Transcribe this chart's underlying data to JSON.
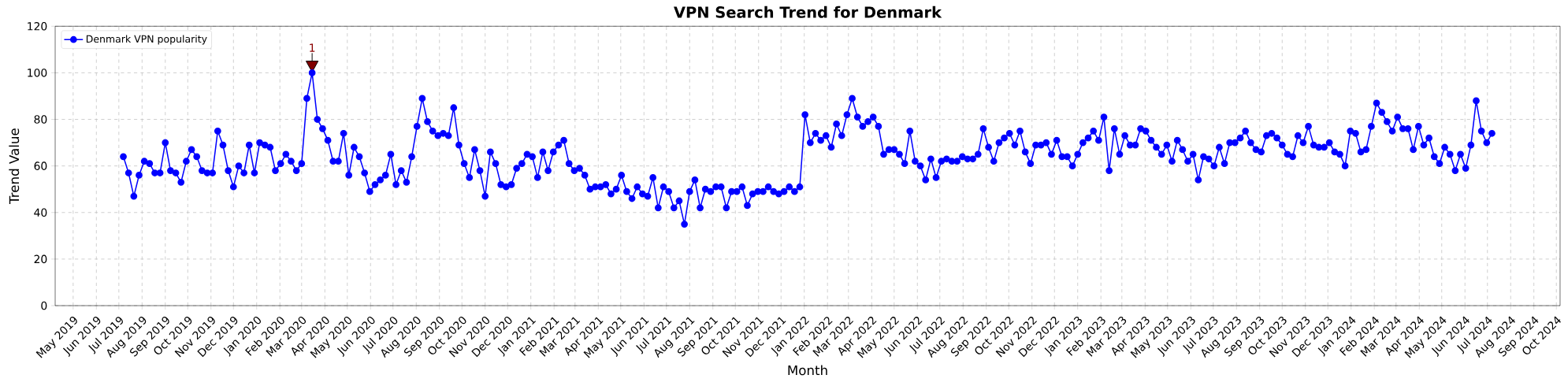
{
  "chart_data": {
    "type": "line",
    "title": "VPN Search Trend for Denmark",
    "xlabel": "Month",
    "ylabel": "Trend Value",
    "x": [
      "2019-07-07",
      "2019-07-14",
      "2019-07-21",
      "2019-07-28",
      "2019-08-04",
      "2019-08-11",
      "2019-08-18",
      "2019-08-25",
      "2019-09-01",
      "2019-09-08",
      "2019-09-15",
      "2019-09-22",
      "2019-09-29",
      "2019-10-06",
      "2019-10-13",
      "2019-10-20",
      "2019-10-27",
      "2019-11-03",
      "2019-11-10",
      "2019-11-17",
      "2019-11-24",
      "2019-12-01",
      "2019-12-08",
      "2019-12-15",
      "2019-12-22",
      "2019-12-29",
      "2020-01-05",
      "2020-01-12",
      "2020-01-19",
      "2020-01-26",
      "2020-02-02",
      "2020-02-09",
      "2020-02-16",
      "2020-02-23",
      "2020-03-01",
      "2020-03-08",
      "2020-03-15",
      "2020-03-22",
      "2020-03-29",
      "2020-04-05",
      "2020-04-12",
      "2020-04-19",
      "2020-04-26",
      "2020-05-03",
      "2020-05-10",
      "2020-05-17",
      "2020-05-24",
      "2020-05-31",
      "2020-06-07",
      "2020-06-14",
      "2020-06-21",
      "2020-06-28",
      "2020-07-05",
      "2020-07-12",
      "2020-07-19",
      "2020-07-26",
      "2020-08-02",
      "2020-08-09",
      "2020-08-16",
      "2020-08-23",
      "2020-08-30",
      "2020-09-06",
      "2020-09-13",
      "2020-09-20",
      "2020-09-27",
      "2020-10-04",
      "2020-10-11",
      "2020-10-18",
      "2020-10-25",
      "2020-11-01",
      "2020-11-08",
      "2020-11-15",
      "2020-11-22",
      "2020-11-29",
      "2020-12-06",
      "2020-12-13",
      "2020-12-20",
      "2020-12-27",
      "2021-01-03",
      "2021-01-10",
      "2021-01-17",
      "2021-01-24",
      "2021-01-31",
      "2021-02-07",
      "2021-02-14",
      "2021-02-21",
      "2021-02-28",
      "2021-03-07",
      "2021-03-14",
      "2021-03-21",
      "2021-03-28",
      "2021-04-04",
      "2021-04-11",
      "2021-04-18",
      "2021-04-25",
      "2021-05-02",
      "2021-05-09",
      "2021-05-16",
      "2021-05-23",
      "2021-05-30",
      "2021-06-06",
      "2021-06-13",
      "2021-06-20",
      "2021-06-27",
      "2021-07-04",
      "2021-07-11",
      "2021-07-18",
      "2021-07-25",
      "2021-08-01",
      "2021-08-08",
      "2021-08-15",
      "2021-08-22",
      "2021-08-29",
      "2021-09-05",
      "2021-09-12",
      "2021-09-19",
      "2021-09-26",
      "2021-10-03",
      "2021-10-10",
      "2021-10-17",
      "2021-10-24",
      "2021-10-31",
      "2021-11-07",
      "2021-11-14",
      "2021-11-21",
      "2021-11-28",
      "2021-12-05",
      "2021-12-12",
      "2021-12-19",
      "2021-12-26",
      "2022-01-02",
      "2022-01-09",
      "2022-01-16",
      "2022-01-23",
      "2022-01-30",
      "2022-02-06",
      "2022-02-13",
      "2022-02-20",
      "2022-02-27",
      "2022-03-06",
      "2022-03-13",
      "2022-03-20",
      "2022-03-27",
      "2022-04-03",
      "2022-04-10",
      "2022-04-17",
      "2022-04-24",
      "2022-05-01",
      "2022-05-08",
      "2022-05-15",
      "2022-05-22",
      "2022-05-29",
      "2022-06-05",
      "2022-06-12",
      "2022-06-19",
      "2022-06-26",
      "2022-07-03",
      "2022-07-10",
      "2022-07-17",
      "2022-07-24",
      "2022-07-31",
      "2022-08-07",
      "2022-08-14",
      "2022-08-21",
      "2022-08-28",
      "2022-09-04",
      "2022-09-11",
      "2022-09-18",
      "2022-09-25",
      "2022-10-02",
      "2022-10-09",
      "2022-10-16",
      "2022-10-23",
      "2022-10-30",
      "2022-11-06",
      "2022-11-13",
      "2022-11-20",
      "2022-11-27",
      "2022-12-04",
      "2022-12-11",
      "2022-12-18",
      "2022-12-25",
      "2023-01-01",
      "2023-01-08",
      "2023-01-15",
      "2023-01-22",
      "2023-01-29",
      "2023-02-05",
      "2023-02-12",
      "2023-02-19",
      "2023-02-26",
      "2023-03-05",
      "2023-03-12",
      "2023-03-19",
      "2023-03-26",
      "2023-04-02",
      "2023-04-09",
      "2023-04-16",
      "2023-04-23",
      "2023-04-30",
      "2023-05-07",
      "2023-05-14",
      "2023-05-21",
      "2023-05-28",
      "2023-06-04",
      "2023-06-11",
      "2023-06-18",
      "2023-06-25",
      "2023-07-02",
      "2023-07-09",
      "2023-07-16",
      "2023-07-23",
      "2023-07-30",
      "2023-08-06",
      "2023-08-13",
      "2023-08-20",
      "2023-08-27",
      "2023-09-03",
      "2023-09-10",
      "2023-09-17",
      "2023-09-24",
      "2023-10-01",
      "2023-10-08",
      "2023-10-15",
      "2023-10-22",
      "2023-10-29",
      "2023-11-05",
      "2023-11-12",
      "2023-11-19",
      "2023-11-26",
      "2023-12-03",
      "2023-12-10",
      "2023-12-17",
      "2023-12-24",
      "2023-12-31",
      "2024-01-07",
      "2024-01-14",
      "2024-01-21",
      "2024-01-28",
      "2024-02-04",
      "2024-02-11",
      "2024-02-18",
      "2024-02-25",
      "2024-03-03",
      "2024-03-10",
      "2024-03-17",
      "2024-03-24",
      "2024-03-31",
      "2024-04-07",
      "2024-04-14",
      "2024-04-21",
      "2024-04-28",
      "2024-05-05",
      "2024-05-12",
      "2024-05-19",
      "2024-05-26",
      "2024-06-02",
      "2024-06-09",
      "2024-06-16",
      "2024-06-23",
      "2024-06-30",
      "2024-07-07"
    ],
    "series": [
      {
        "name": "Denmark VPN popularity",
        "color": "#0000ff",
        "values": [
          64,
          57,
          47,
          56,
          62,
          61,
          57,
          57,
          70,
          58,
          57,
          53,
          62,
          67,
          64,
          58,
          57,
          57,
          75,
          69,
          58,
          51,
          60,
          57,
          69,
          57,
          70,
          69,
          68,
          58,
          61,
          65,
          62,
          58,
          61,
          89,
          100,
          80,
          76,
          71,
          62,
          62,
          74,
          56,
          68,
          64,
          57,
          49,
          52,
          54,
          56,
          65,
          52,
          58,
          53,
          64,
          77,
          89,
          79,
          75,
          73,
          74,
          73,
          85,
          69,
          61,
          55,
          67,
          58,
          47,
          66,
          61,
          52,
          51,
          52,
          59,
          61,
          65,
          64,
          55,
          66,
          58,
          66,
          69,
          71,
          61,
          58,
          59,
          56,
          50,
          51,
          51,
          52,
          48,
          50,
          56,
          49,
          46,
          51,
          48,
          47,
          55,
          42,
          51,
          49,
          42,
          45,
          35,
          49,
          54,
          42,
          50,
          49,
          51,
          51,
          42,
          49,
          49,
          51,
          43,
          48,
          49,
          49,
          51,
          49,
          48,
          49,
          51,
          49,
          51,
          82,
          70,
          74,
          71,
          73,
          68,
          78,
          73,
          82,
          89,
          81,
          77,
          79,
          81,
          77,
          65,
          67,
          67,
          65,
          61,
          75,
          62,
          60,
          54,
          63,
          55,
          62,
          63,
          62,
          62,
          64,
          63,
          63,
          65,
          76,
          68,
          62,
          70,
          72,
          74,
          69,
          75,
          66,
          61,
          69,
          69,
          70,
          65,
          71,
          64,
          64,
          60,
          65,
          70,
          72,
          75,
          71,
          81,
          58,
          76,
          65,
          73,
          69,
          69,
          76,
          75,
          71,
          68,
          65,
          69,
          62,
          71,
          67,
          62,
          65,
          54,
          64,
          63,
          60,
          68,
          61,
          70,
          70,
          72,
          75,
          70,
          67,
          66,
          73,
          74,
          72,
          69,
          65,
          64,
          73,
          70,
          77,
          69,
          68,
          68,
          70,
          66,
          65,
          60,
          75,
          74,
          66,
          67,
          77,
          87,
          83,
          79,
          75,
          81,
          76,
          76,
          67,
          77,
          69,
          72,
          64,
          61,
          68,
          65,
          58,
          65,
          59,
          69,
          88,
          75,
          70,
          74
        ]
      }
    ],
    "xlim": [
      "2019-04-07",
      "2024-10-06"
    ],
    "ylim": [
      0,
      120
    ],
    "yticks": [
      0,
      20,
      40,
      60,
      80,
      100,
      120
    ],
    "xticks": [
      {
        "value": "2019-05",
        "label": "May 2019"
      },
      {
        "value": "2019-06",
        "label": "Jun 2019"
      },
      {
        "value": "2019-07",
        "label": "Jul 2019"
      },
      {
        "value": "2019-08",
        "label": "Aug 2019"
      },
      {
        "value": "2019-09",
        "label": "Sep 2019"
      },
      {
        "value": "2019-10",
        "label": "Oct 2019"
      },
      {
        "value": "2019-11",
        "label": "Nov 2019"
      },
      {
        "value": "2019-12",
        "label": "Dec 2019"
      },
      {
        "value": "2020-01",
        "label": "Jan 2020"
      },
      {
        "value": "2020-02",
        "label": "Feb 2020"
      },
      {
        "value": "2020-03",
        "label": "Mar 2020"
      },
      {
        "value": "2020-04",
        "label": "Apr 2020"
      },
      {
        "value": "2020-05",
        "label": "May 2020"
      },
      {
        "value": "2020-06",
        "label": "Jun 2020"
      },
      {
        "value": "2020-07",
        "label": "Jul 2020"
      },
      {
        "value": "2020-08",
        "label": "Aug 2020"
      },
      {
        "value": "2020-09",
        "label": "Sep 2020"
      },
      {
        "value": "2020-10",
        "label": "Oct 2020"
      },
      {
        "value": "2020-11",
        "label": "Nov 2020"
      },
      {
        "value": "2020-12",
        "label": "Dec 2020"
      },
      {
        "value": "2021-01",
        "label": "Jan 2021"
      },
      {
        "value": "2021-02",
        "label": "Feb 2021"
      },
      {
        "value": "2021-03",
        "label": "Mar 2021"
      },
      {
        "value": "2021-04",
        "label": "Apr 2021"
      },
      {
        "value": "2021-05",
        "label": "May 2021"
      },
      {
        "value": "2021-06",
        "label": "Jun 2021"
      },
      {
        "value": "2021-07",
        "label": "Jul 2021"
      },
      {
        "value": "2021-08",
        "label": "Aug 2021"
      },
      {
        "value": "2021-09",
        "label": "Sep 2021"
      },
      {
        "value": "2021-10",
        "label": "Oct 2021"
      },
      {
        "value": "2021-11",
        "label": "Nov 2021"
      },
      {
        "value": "2021-12",
        "label": "Dec 2021"
      },
      {
        "value": "2022-01",
        "label": "Jan 2022"
      },
      {
        "value": "2022-02",
        "label": "Feb 2022"
      },
      {
        "value": "2022-03",
        "label": "Mar 2022"
      },
      {
        "value": "2022-04",
        "label": "Apr 2022"
      },
      {
        "value": "2022-05",
        "label": "May 2022"
      },
      {
        "value": "2022-06",
        "label": "Jun 2022"
      },
      {
        "value": "2022-07",
        "label": "Jul 2022"
      },
      {
        "value": "2022-08",
        "label": "Aug 2022"
      },
      {
        "value": "2022-09",
        "label": "Sep 2022"
      },
      {
        "value": "2022-10",
        "label": "Oct 2022"
      },
      {
        "value": "2022-11",
        "label": "Nov 2022"
      },
      {
        "value": "2022-12",
        "label": "Dec 2022"
      },
      {
        "value": "2023-01",
        "label": "Jan 2023"
      },
      {
        "value": "2023-02",
        "label": "Feb 2023"
      },
      {
        "value": "2023-03",
        "label": "Mar 2023"
      },
      {
        "value": "2023-04",
        "label": "Apr 2023"
      },
      {
        "value": "2023-05",
        "label": "May 2023"
      },
      {
        "value": "2023-06",
        "label": "Jun 2023"
      },
      {
        "value": "2023-07",
        "label": "Jul 2023"
      },
      {
        "value": "2023-08",
        "label": "Aug 2023"
      },
      {
        "value": "2023-09",
        "label": "Sep 2023"
      },
      {
        "value": "2023-10",
        "label": "Oct 2023"
      },
      {
        "value": "2023-11",
        "label": "Nov 2023"
      },
      {
        "value": "2023-12",
        "label": "Dec 2023"
      },
      {
        "value": "2024-01",
        "label": "Jan 2024"
      },
      {
        "value": "2024-02",
        "label": "Feb 2024"
      },
      {
        "value": "2024-03",
        "label": "Mar 2024"
      },
      {
        "value": "2024-04",
        "label": "Apr 2024"
      },
      {
        "value": "2024-05",
        "label": "May 2024"
      },
      {
        "value": "2024-06",
        "label": "Jun 2024"
      },
      {
        "value": "2024-07",
        "label": "Jul 2024"
      },
      {
        "value": "2024-08",
        "label": "Aug 2024"
      },
      {
        "value": "2024-09",
        "label": "Sep 2024"
      },
      {
        "value": "2024-10",
        "label": "Oct 2024"
      }
    ],
    "annotations": [
      {
        "text": "1",
        "x": "2020-03-15",
        "y": 100
      }
    ],
    "grid": true,
    "legend": "top left",
    "marker": "circle",
    "line_style": "solid"
  }
}
